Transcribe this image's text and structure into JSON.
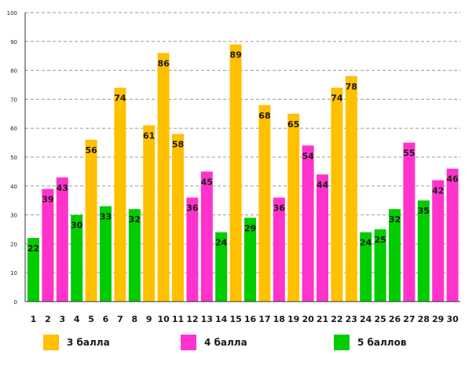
{
  "chart_data": {
    "type": "bar",
    "title": "",
    "xlabel": "",
    "ylabel": "",
    "ylim": [
      0,
      100
    ],
    "yticks": [
      0,
      10,
      20,
      30,
      40,
      50,
      60,
      70,
      80,
      90,
      100
    ],
    "grid": true,
    "legend_placement": "bottom",
    "categories": [
      "1",
      "2",
      "3",
      "4",
      "5",
      "6",
      "7",
      "8",
      "9",
      "10",
      "11",
      "12",
      "13",
      "14",
      "15",
      "16",
      "17",
      "18",
      "19",
      "20",
      "21",
      "22",
      "23",
      "24",
      "25",
      "26",
      "27",
      "28",
      "29",
      "30"
    ],
    "values": [
      22,
      39,
      43,
      30,
      56,
      33,
      74,
      32,
      61,
      86,
      58,
      36,
      45,
      24,
      89,
      29,
      68,
      36,
      65,
      54,
      44,
      74,
      78,
      24,
      25,
      32,
      55,
      35,
      42,
      46
    ],
    "bar_groups": [
      "g5",
      "g4",
      "g4",
      "g5",
      "g3",
      "g5",
      "g3",
      "g5",
      "g3",
      "g3",
      "g3",
      "g4",
      "g4",
      "g5",
      "g3",
      "g5",
      "g3",
      "g4",
      "g3",
      "g4",
      "g4",
      "g3",
      "g3",
      "g5",
      "g5",
      "g5",
      "g4",
      "g5",
      "g4",
      "g4"
    ],
    "groups": [
      {
        "id": "g3",
        "name": "3 балла",
        "color": "#ffc000"
      },
      {
        "id": "g4",
        "name": "4 балла",
        "color": "#ff33cc"
      },
      {
        "id": "g5",
        "name": "5 баллов",
        "color": "#00cc00"
      }
    ]
  }
}
